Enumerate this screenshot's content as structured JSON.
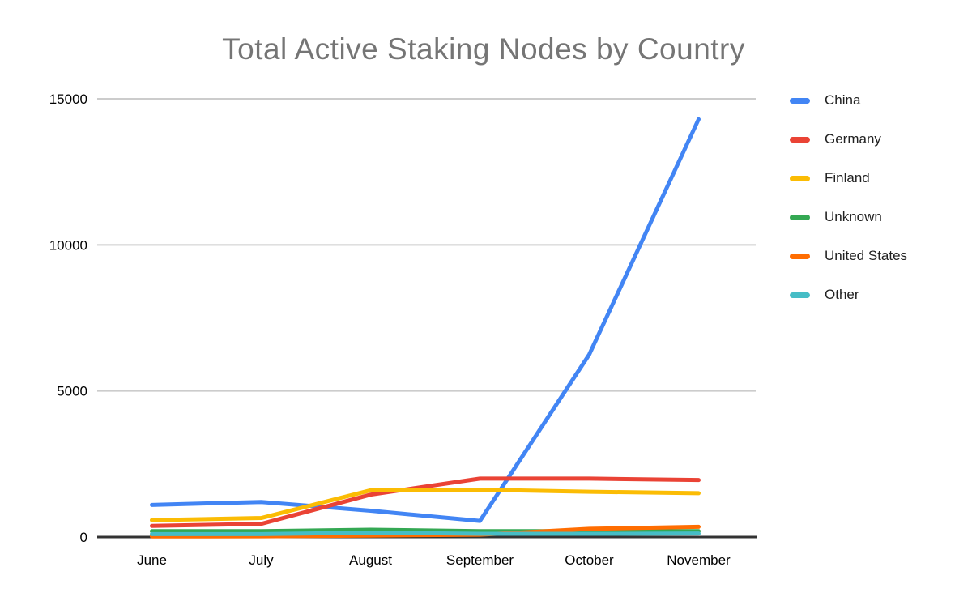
{
  "page": {
    "background": "#ffffff"
  },
  "chart_data": {
    "type": "line",
    "title": "Total Active Staking Nodes by Country",
    "title_color": "#757575",
    "categories": [
      "June",
      "July",
      "August",
      "September",
      "October",
      "November"
    ],
    "series": [
      {
        "name": "China",
        "color": "#4285F4",
        "values": [
          1100,
          1200,
          900,
          550,
          6250,
          14300
        ]
      },
      {
        "name": "Germany",
        "color": "#EA4335",
        "values": [
          380,
          450,
          1450,
          2000,
          2000,
          1950
        ]
      },
      {
        "name": "Finland",
        "color": "#FBBC04",
        "values": [
          580,
          650,
          1600,
          1620,
          1550,
          1500
        ]
      },
      {
        "name": "Unknown",
        "color": "#34A853",
        "values": [
          200,
          200,
          250,
          200,
          200,
          200
        ]
      },
      {
        "name": "United States",
        "color": "#FF6D01",
        "values": [
          20,
          25,
          50,
          80,
          280,
          350
        ]
      },
      {
        "name": "Other",
        "color": "#46BDC6",
        "values": [
          100,
          100,
          150,
          110,
          110,
          120
        ]
      }
    ],
    "xlabel": "",
    "ylabel": "",
    "ylim": [
      0,
      15000
    ],
    "yticks": [
      0,
      5000,
      10000,
      15000
    ],
    "ytick_labels": [
      "0",
      "5000",
      "10000",
      "15000"
    ],
    "grid": true,
    "gridline_color": "#cccccc",
    "axis_color": "#333333",
    "axis_label_color": "#000000",
    "legend_position": "right",
    "legend_text_color": "#212121"
  }
}
